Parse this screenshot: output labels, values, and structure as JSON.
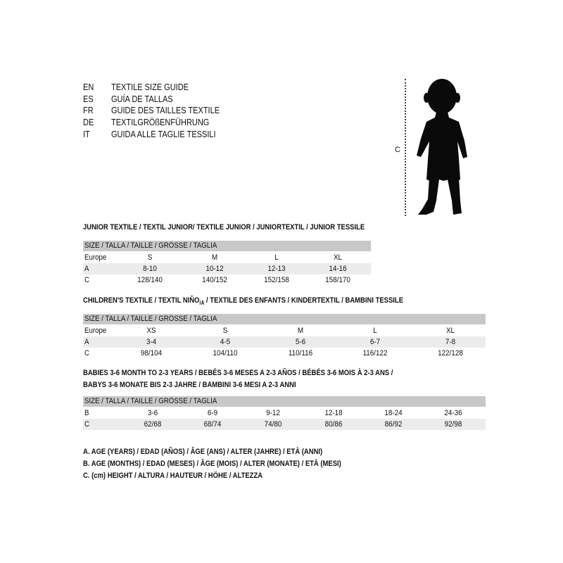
{
  "languages": [
    {
      "code": "EN",
      "text": "TEXTILE SIZE GUIDE"
    },
    {
      "code": "ES",
      "text": "GUÍA DE TALLAS"
    },
    {
      "code": "FR",
      "text": "GUIDE DES TAILLES TEXTILE"
    },
    {
      "code": "DE",
      "text": "TEXTILGRÖßENFÜHRUNG"
    },
    {
      "code": "IT",
      "text": "GUIDA ALLE TAGLIE TESSILI"
    }
  ],
  "figure": {
    "measure_label": "C"
  },
  "junior": {
    "title": "JUNIOR TEXTILE / TEXTIL JUNIOR/ TEXTILE JUNIOR / JUNIORTEXTIL / JUNIOR TESSILE",
    "header": "SIZE / TALLA / TAILLE / GRÖSSE / TAGLIA",
    "rows": [
      {
        "label": "Europe",
        "cells": [
          "S",
          "M",
          "L",
          "XL"
        ]
      },
      {
        "label": "A",
        "cells": [
          "8-10",
          "10-12",
          "12-13",
          "14-16"
        ]
      },
      {
        "label": "C",
        "cells": [
          "128/140",
          "140/152",
          "152/158",
          "158/170"
        ]
      }
    ]
  },
  "children": {
    "title_a": "CHILDREN'S TEXTILE / TEXTIL NIÑO",
    "title_sub": "/A",
    "title_b": " / TEXTILE DES ENFANTS / KINDERTEXTIL / BAMBINI TESSILE",
    "header": "SIZE / TALLA / TAILLE / GRÖSSE / TAGLIA",
    "rows": [
      {
        "label": "Europe",
        "cells": [
          "XS",
          "S",
          "M",
          "L",
          "XL"
        ]
      },
      {
        "label": "A",
        "cells": [
          "3-4",
          "4-5",
          "5-6",
          "6-7",
          "7-8"
        ]
      },
      {
        "label": "C",
        "cells": [
          "98/104",
          "104/110",
          "110/116",
          "116/122",
          "122/128"
        ]
      }
    ]
  },
  "babies": {
    "title_line1": "BABIES 3-6 MONTH TO 2-3 YEARS / BEBÉS 3-6 MESES A 2-3 AÑOS / BÉBÉS 3-6 MOIS À 2-3 ANS /",
    "title_line2": "BABYS 3-6 MONATE BIS 2-3 JAHRE / BAMBINI 3-6 MESI A 2-3 ANNI",
    "header": "SIZE / TALLA / TAILLE / GRÖSSE / TAGLIA",
    "rows": [
      {
        "label": "B",
        "cells": [
          "3-6",
          "6-9",
          "9-12",
          "12-18",
          "18-24",
          "24-36"
        ]
      },
      {
        "label": "C",
        "cells": [
          "62/68",
          "68/74",
          "74/80",
          "80/86",
          "86/92",
          "92/98"
        ]
      }
    ]
  },
  "legend": [
    "A. AGE (YEARS) / EDAD (AÑOS) / ÂGE (ANS) / ALTER (JAHRE) / ETÀ (ANNI)",
    "B. AGE (MONTHS) / EDAD (MESES) / ÂGE (MOIS) / ALTER (MONATE) / ETÀ (MESI)",
    "C. (cm) HEIGHT / ALTURA / HAUTEUR / HÖHE / ALTEZZA"
  ]
}
